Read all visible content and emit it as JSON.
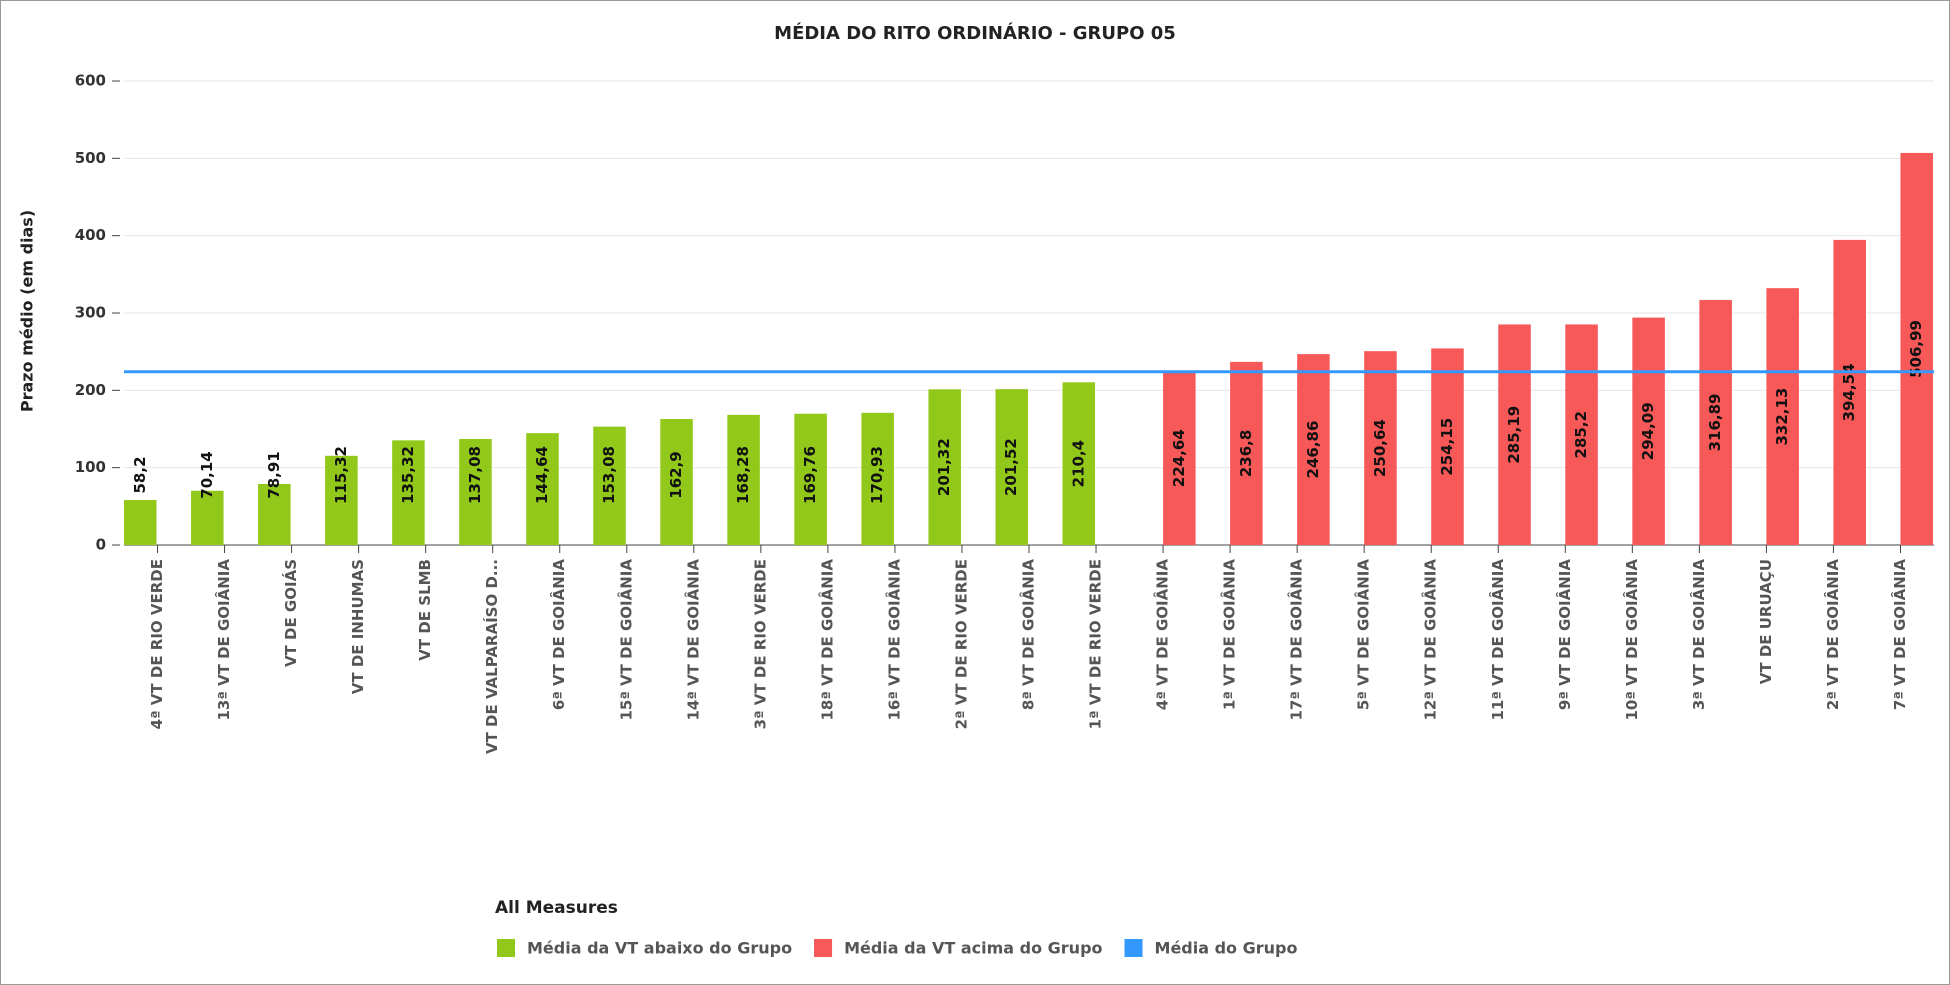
{
  "chart_data": {
    "type": "bar",
    "title": "MÉDIA DO RITO ORDINÁRIO - GRUPO 05",
    "y_label": "Prazo médio (em dias)",
    "legend_title": "All Measures",
    "categories": [
      "4ª VT DE RIO VERDE",
      "13ª VT DE GOIÂNIA",
      "VT DE GOIÁS",
      "VT DE INHUMAS",
      "VT DE SLMB",
      "VT DE VALPARAÍSO D...",
      "6ª VT DE GOIÂNIA",
      "15ª VT DE GOIÂNIA",
      "14ª VT DE GOIÂNIA",
      "3ª VT DE RIO VERDE",
      "18ª VT DE GOIÂNIA",
      "16ª VT DE GOIÂNIA",
      "2ª VT DE RIO VERDE",
      "8ª VT DE GOIÂNIA",
      "1ª VT DE RIO VERDE",
      "4ª VT DE GOIÂNIA",
      "1ª VT DE GOIÂNIA",
      "17ª VT DE GOIÂNIA",
      "5ª VT DE GOIÂNIA",
      "12ª VT DE GOIÂNIA",
      "11ª VT DE GOIÂNIA",
      "9ª VT DE GOIÂNIA",
      "10ª VT DE GOIÂNIA",
      "3ª VT DE GOIÂNIA",
      "VT DE URUAÇU",
      "2ª VT DE GOIÂNIA",
      "7ª VT DE GOIÂNIA"
    ],
    "series": [
      {
        "name": "Média da VT abaixo do Grupo",
        "color": "#92c81a",
        "kind": "bar",
        "values": [
          58.2,
          70.14,
          78.91,
          115.32,
          135.32,
          137.08,
          144.64,
          153.08,
          162.9,
          168.28,
          169.76,
          170.93,
          201.32,
          201.52,
          210.4,
          null,
          null,
          null,
          null,
          null,
          null,
          null,
          null,
          null,
          null,
          null,
          null
        ],
        "value_labels": [
          "58,2",
          "70,14",
          "78,91",
          "115,32",
          "135,32",
          "137,08",
          "144,64",
          "153,08",
          "162,9",
          "168,28",
          "169,76",
          "170,93",
          "201,32",
          "201,52",
          "210,4",
          null,
          null,
          null,
          null,
          null,
          null,
          null,
          null,
          null,
          null,
          null,
          null
        ]
      },
      {
        "name": "Média da VT acima do Grupo",
        "color": "#f75858",
        "kind": "bar",
        "values": [
          null,
          null,
          null,
          null,
          null,
          null,
          null,
          null,
          null,
          null,
          null,
          null,
          null,
          null,
          null,
          224.64,
          236.8,
          246.86,
          250.64,
          254.15,
          285.19,
          285.2,
          294.09,
          316.89,
          332.13,
          394.54,
          506.99
        ],
        "value_labels": [
          null,
          null,
          null,
          null,
          null,
          null,
          null,
          null,
          null,
          null,
          null,
          null,
          null,
          null,
          null,
          "224,64",
          "236,8",
          "246,86",
          "250,64",
          "254,15",
          "285,19",
          "285,2",
          "294,09",
          "316,89",
          "332,13",
          "394,54",
          "506,99"
        ]
      },
      {
        "name": "Média do Grupo",
        "color": "#3399ff",
        "kind": "line",
        "values": [
          224,
          224,
          224,
          224,
          224,
          224,
          224,
          224,
          224,
          224,
          224,
          224,
          224,
          224,
          224,
          224,
          224,
          224,
          224,
          224,
          224,
          224,
          224,
          224,
          224,
          224,
          224
        ]
      }
    ],
    "ylim": [
      0,
      600
    ],
    "yticks": [
      0,
      100,
      200,
      300,
      400,
      500,
      600
    ],
    "grid": true
  }
}
